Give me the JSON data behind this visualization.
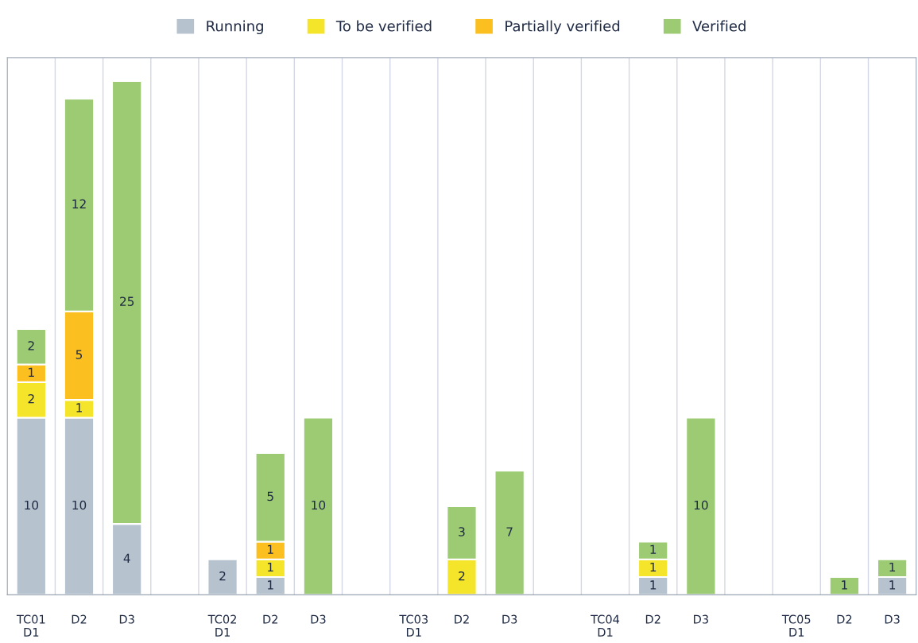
{
  "chart_data": {
    "type": "bar",
    "stacked": true,
    "data_labels": true,
    "grid": "x",
    "legend": "top",
    "tick_labels": "x",
    "categories": [
      "TC01\nD1",
      "D2",
      "D3",
      null,
      "TC02\nD1",
      "D2",
      "D3",
      null,
      "TC03\nD1",
      "D2",
      "D3",
      null,
      "TC04\nD1",
      "D2",
      "D3",
      null,
      "TC05\nD1",
      "D2",
      "D3"
    ],
    "series": [
      {
        "name": "Running",
        "color": "#b6c2ce",
        "values": [
          10,
          10,
          4,
          null,
          2,
          1,
          null,
          null,
          null,
          null,
          null,
          null,
          null,
          1,
          null,
          null,
          null,
          null,
          1
        ]
      },
      {
        "name": "To be verified",
        "color": "#f5e52a",
        "values": [
          2,
          1,
          null,
          null,
          null,
          1,
          null,
          null,
          null,
          2,
          null,
          null,
          null,
          1,
          null,
          null,
          null,
          null,
          null
        ]
      },
      {
        "name": "Partially verified",
        "color": "#fbbf1f",
        "values": [
          1,
          5,
          null,
          null,
          null,
          1,
          null,
          null,
          null,
          null,
          null,
          null,
          null,
          null,
          null,
          null,
          null,
          null,
          null
        ]
      },
      {
        "name": "Verified",
        "color": "#9ccb74",
        "values": [
          2,
          12,
          25,
          null,
          null,
          5,
          10,
          null,
          null,
          3,
          7,
          null,
          null,
          1,
          10,
          null,
          null,
          1,
          1
        ]
      }
    ]
  }
}
